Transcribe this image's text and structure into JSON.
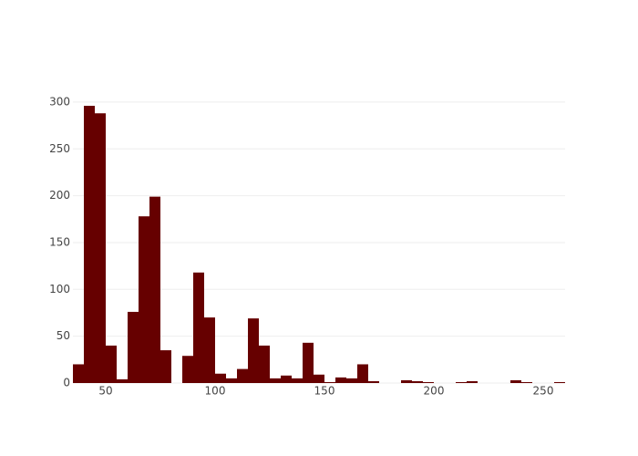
{
  "chart_data": {
    "type": "histogram",
    "bins": [
      35,
      40,
      45,
      50,
      55,
      60,
      65,
      70,
      75,
      80,
      85,
      90,
      95,
      100,
      105,
      110,
      115,
      120,
      125,
      130,
      135,
      140,
      145,
      150,
      155,
      160,
      165,
      170,
      175,
      180,
      185,
      190,
      195,
      200,
      205,
      210,
      215,
      220,
      225,
      230,
      235,
      240,
      245,
      250,
      255,
      260
    ],
    "counts": [
      20,
      296,
      288,
      40,
      4,
      76,
      178,
      199,
      35,
      0,
      29,
      118,
      70,
      10,
      5,
      15,
      69,
      40,
      5,
      8,
      5,
      43,
      9,
      1,
      6,
      5,
      20,
      2,
      0,
      0,
      3,
      2,
      1,
      0,
      0,
      1,
      2,
      0,
      0,
      0,
      3,
      1,
      0,
      0,
      1
    ],
    "color": "#660000",
    "xlim": [
      35,
      260
    ],
    "xticks": [
      50,
      100,
      150,
      200,
      250
    ],
    "ylim": [
      0,
      311.6
    ],
    "yticks": [
      0,
      50,
      100,
      150,
      200,
      250,
      300
    ],
    "grid": true
  }
}
